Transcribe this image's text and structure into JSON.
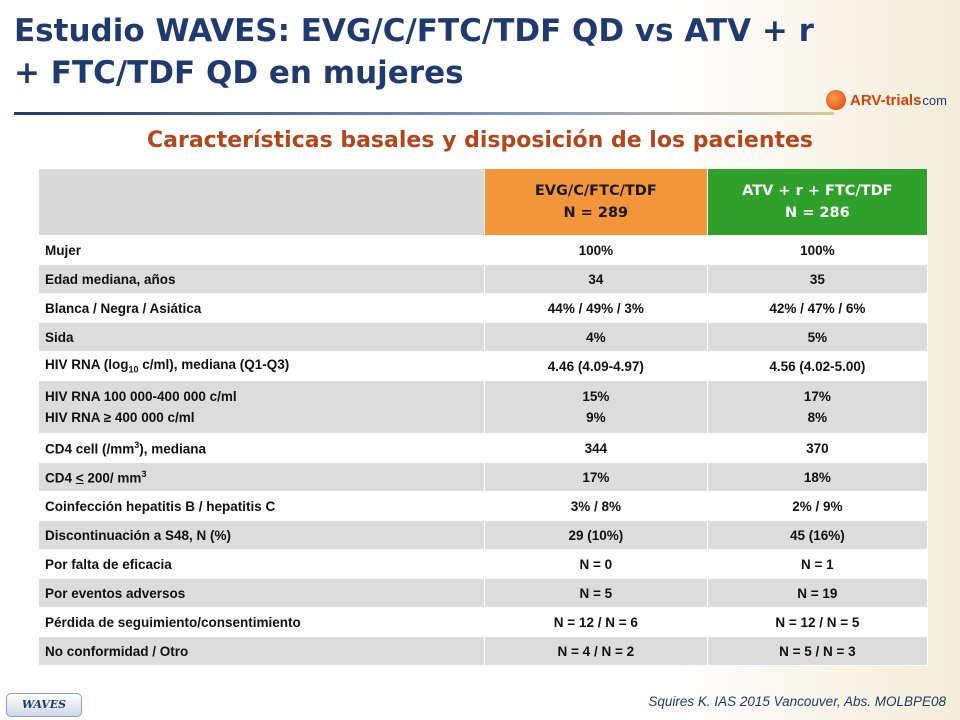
{
  "slide": {
    "title_line1": "Estudio WAVES: EVG/C/FTC/TDF QD vs ATV + r",
    "title_line2": "+ FTC/TDF QD en mujeres",
    "subtitle": "Características basales y disposición de los pacientes",
    "logo_text_main": "ARV-trials",
    "logo_text_suffix": "com",
    "footer_tag": "WAVES",
    "citation": "Squires K. IAS 2015 Vancouver, Abs. MOLBPE08",
    "colors": {
      "title": "#1f3a6e",
      "subtitle": "#b5451b",
      "col1_header": "#f39539",
      "col2_header": "#2fa02a"
    }
  },
  "table": {
    "col1_header_l1": "EVG/C/FTC/TDF",
    "col1_header_l2": "N = 289",
    "col2_header_l1": "ATV + r + FTC/TDF",
    "col2_header_l2": "N = 286",
    "r1": {
      "label": "Mujer",
      "v1": "100%",
      "v2": "100%"
    },
    "r2": {
      "label": "Edad mediana, años",
      "v1": "34",
      "v2": "35"
    },
    "r3": {
      "label": "Blanca / Negra / Asiática",
      "v1": "44% / 49% / 3%",
      "v2": "42% / 47% / 6%"
    },
    "r4": {
      "label": "Sida",
      "v1": "4%",
      "v2": "5%"
    },
    "r5": {
      "label_pre": "HIV RNA (log",
      "label_sub": "10",
      "label_post": " c/ml), mediana (Q1-Q3)",
      "v1": "4.46 (4.09-4.97)",
      "v2": "4.56 (4.02-5.00)"
    },
    "r6": {
      "label_a": "HIV RNA 100 000-400 000 c/ml",
      "label_b": "HIV RNA ≥ 400 000 c/ml",
      "v1a": "15%",
      "v1b": "9%",
      "v2a": "17%",
      "v2b": "8%"
    },
    "r7": {
      "label_pre": "CD4 cell (/mm",
      "label_sup": "3",
      "label_post": "), mediana",
      "v1": "344",
      "v2": "370"
    },
    "r8": {
      "label_pre": "CD4 ",
      "label_u": "<",
      "label_mid": " 200/ mm",
      "label_sup": "3",
      "v1": "17%",
      "v2": "18%"
    },
    "r9": {
      "label": "Coinfección hepatitis B / hepatitis C",
      "v1": "3% / 8%",
      "v2": "2% / 9%"
    },
    "r10": {
      "label": "Discontinuación a S48, N (%)",
      "v1": "29 (10%)",
      "v2": "45 (16%)"
    },
    "r11": {
      "label": "Por falta de eficacia",
      "v1": "N = 0",
      "v2": "N = 1"
    },
    "r12": {
      "label": "Por eventos adversos",
      "v1": "N = 5",
      "v2": "N = 19"
    },
    "r13": {
      "label": "Pérdida de seguimiento/consentimiento",
      "v1": "N = 12 / N = 6",
      "v2": "N = 12 / N = 5"
    },
    "r14": {
      "label": "No conformidad / Otro",
      "v1": "N = 4 / N = 2",
      "v2": "N = 5 / N = 3"
    }
  }
}
